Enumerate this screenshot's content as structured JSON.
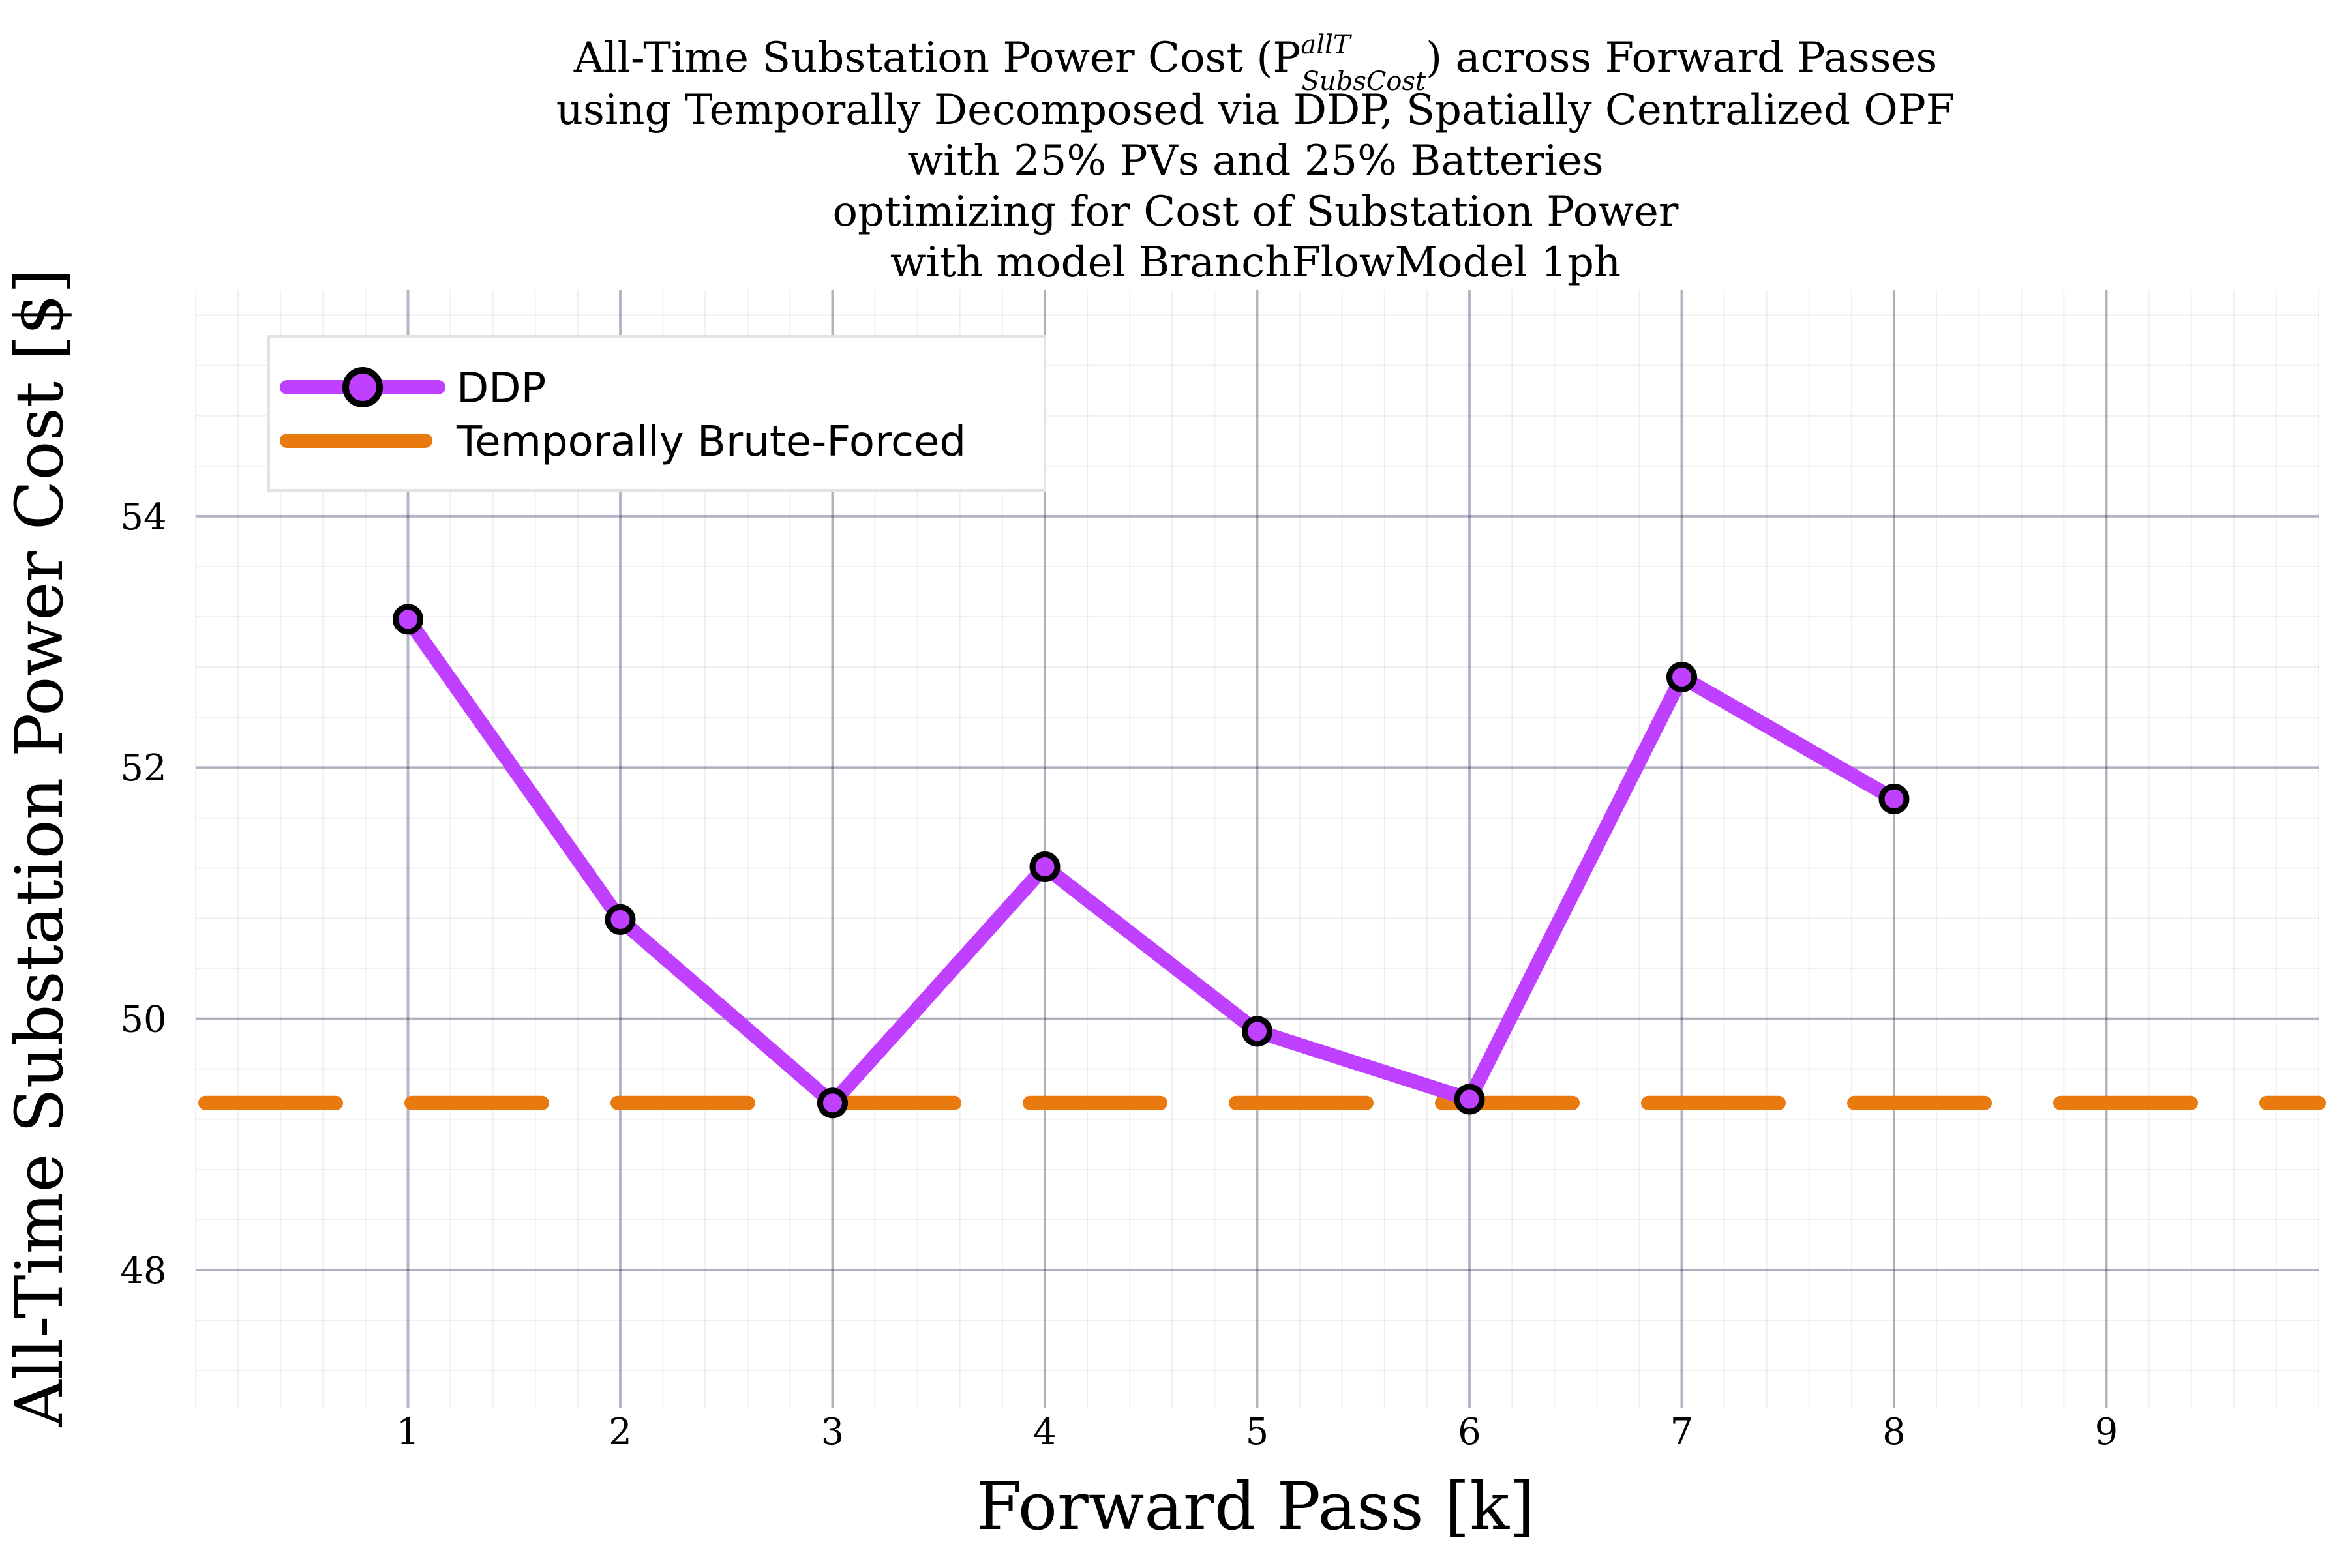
{
  "chart_data": {
    "type": "line",
    "title_lines": [
      "All-Time Substation Power Cost (P",
      "using Temporally Decomposed via DDP, Spatially Centralized OPF",
      "with 25% PVs and 25% Batteries",
      "optimizing for Cost of Substation Power",
      "with model BranchFlowModel 1ph"
    ],
    "title_symbol": {
      "superscript": "allT",
      "subscript": "SubsCost",
      "suffix": ") across Forward Passes"
    },
    "xlabel": "Forward Pass [k]",
    "ylabel": "All-Time Substation Power Cost [$]",
    "xlim": [
      0,
      10
    ],
    "ylim": [
      46.9,
      55.8
    ],
    "xticks": [
      1,
      2,
      3,
      4,
      5,
      6,
      7,
      8,
      9
    ],
    "yticks": [
      48,
      50,
      52,
      54
    ],
    "grid": true,
    "minor_grid": true,
    "legend_position": "top-left",
    "series": [
      {
        "name": "DDP",
        "style": "line-with-markers",
        "color": "#bf40ff",
        "marker_edge": "#000000",
        "x": [
          1,
          2,
          3,
          4,
          5,
          6,
          7,
          8
        ],
        "y": [
          53.18,
          50.79,
          49.33,
          51.21,
          49.9,
          49.36,
          52.72,
          51.75
        ]
      },
      {
        "name": "Temporally Brute-Forced",
        "style": "dashed-horizontal",
        "color": "#e87a10",
        "y": 49.33
      }
    ]
  }
}
